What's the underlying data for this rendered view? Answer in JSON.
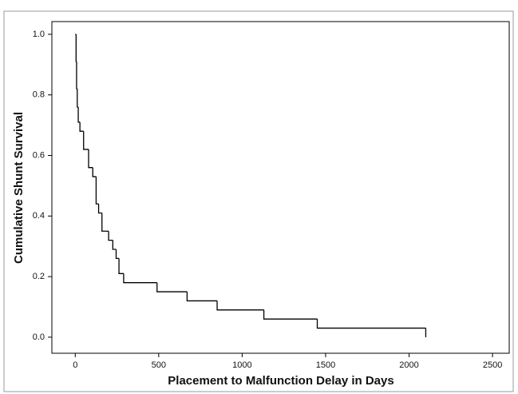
{
  "chart_data": {
    "type": "line",
    "step": "post",
    "x_label": "Placement to Malfunction Delay in Days",
    "y_label": "Cumulative Shunt Survival",
    "x": [
      0,
      5,
      8,
      12,
      18,
      28,
      50,
      80,
      105,
      125,
      140,
      160,
      200,
      225,
      245,
      262,
      290,
      490,
      670,
      850,
      1130,
      1450,
      2100
    ],
    "series": [
      {
        "color": "#000000",
        "values": [
          1.0,
          0.91,
          0.82,
          0.76,
          0.71,
          0.68,
          0.62,
          0.56,
          0.53,
          0.44,
          0.41,
          0.35,
          0.32,
          0.29,
          0.26,
          0.21,
          0.18,
          0.15,
          0.12,
          0.09,
          0.06,
          0.03,
          0.0
        ]
      }
    ],
    "xlim": [
      -140,
      2600
    ],
    "ylim": [
      -0.053,
      1.042
    ],
    "xticks": [
      0,
      500,
      1000,
      1500,
      2000,
      2500
    ],
    "yticks": [
      {
        "value": 0,
        "label": "0.0"
      },
      0.2,
      0.4,
      0.6,
      0.8,
      {
        "value": 1,
        "label": "1.0"
      }
    ]
  }
}
